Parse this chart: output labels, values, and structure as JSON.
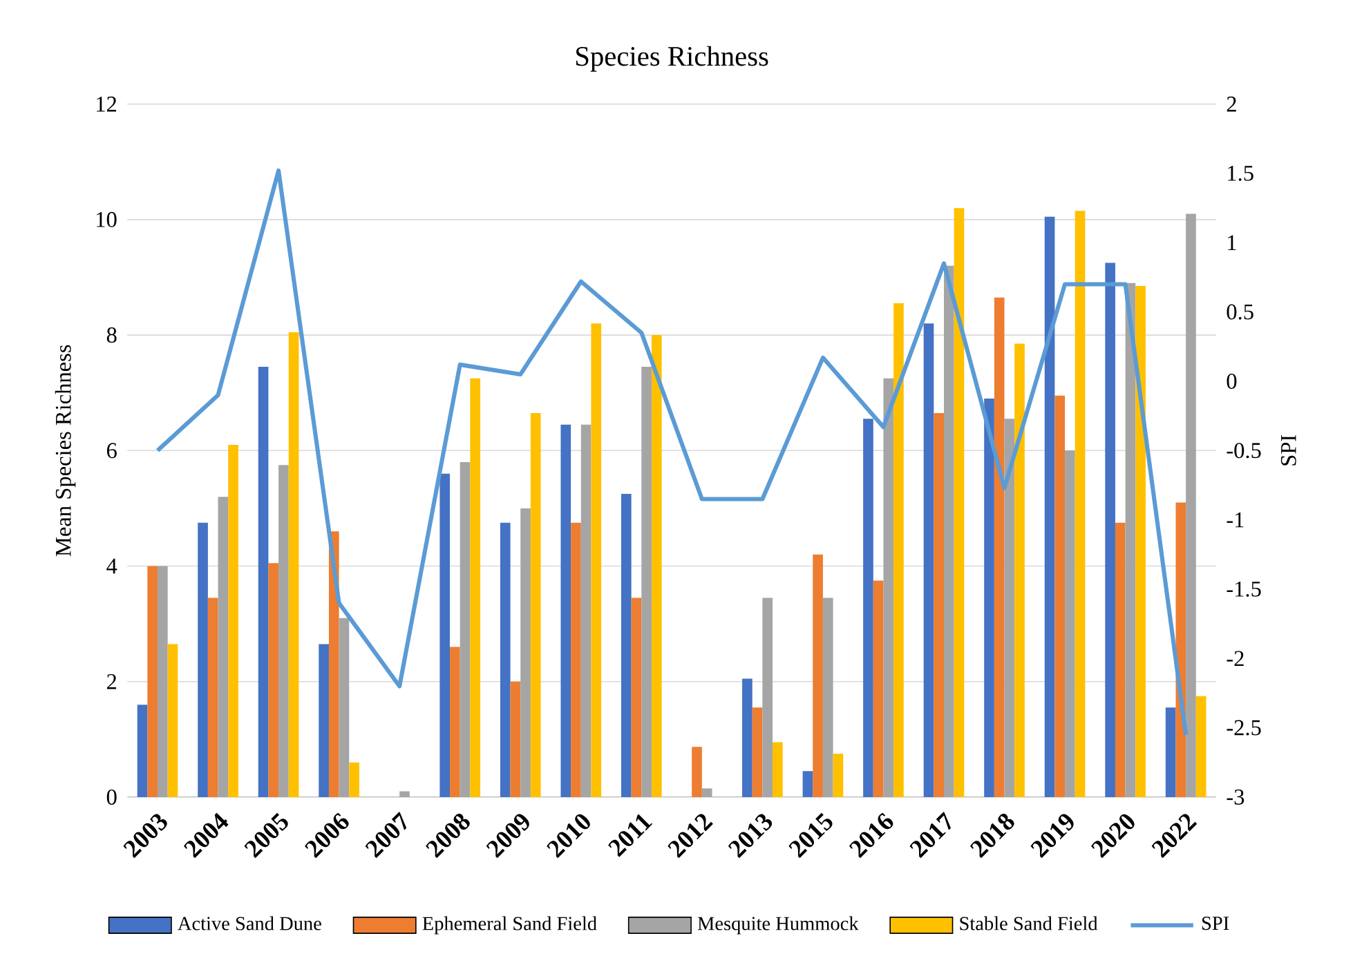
{
  "chart_data": {
    "type": "bar",
    "title": "Species Richness",
    "ylabel": "Mean Species Richness",
    "y2label": "SPI",
    "categories": [
      "2003",
      "2004",
      "2005",
      "2006",
      "2007",
      "2008",
      "2009",
      "2010",
      "2011",
      "2012",
      "2013",
      "2015",
      "2016",
      "2017",
      "2018",
      "2019",
      "2020",
      "2022"
    ],
    "series": [
      {
        "name": "Active Sand Dune",
        "color": "#4472c4",
        "values": [
          1.6,
          4.75,
          7.45,
          2.65,
          null,
          5.6,
          4.75,
          6.45,
          5.25,
          null,
          2.05,
          0.45,
          6.55,
          8.2,
          6.9,
          10.05,
          9.25,
          1.55
        ]
      },
      {
        "name": "Ephemeral Sand Field",
        "color": "#ed7d31",
        "values": [
          4.0,
          3.45,
          4.05,
          4.6,
          null,
          2.6,
          2.0,
          4.75,
          3.45,
          0.87,
          1.55,
          4.2,
          3.75,
          6.65,
          8.65,
          6.95,
          4.75,
          5.1
        ]
      },
      {
        "name": "Mesquite Hummock",
        "color": "#a5a5a5",
        "values": [
          4.0,
          5.2,
          5.75,
          3.1,
          0.1,
          5.8,
          5.0,
          6.45,
          7.45,
          0.15,
          3.45,
          3.45,
          7.25,
          9.2,
          6.55,
          6.0,
          8.9,
          10.1
        ]
      },
      {
        "name": "Stable Sand Field",
        "color": "#ffc000",
        "values": [
          2.65,
          6.1,
          8.05,
          0.6,
          null,
          7.25,
          6.65,
          8.2,
          8.0,
          null,
          0.95,
          0.75,
          8.55,
          10.2,
          7.85,
          10.15,
          8.85,
          1.75
        ]
      },
      {
        "name": "SPI",
        "type": "line",
        "axis": "y2",
        "color": "#5b9bd5",
        "values": [
          -0.5,
          -0.1,
          1.52,
          -1.6,
          -2.2,
          0.12,
          0.05,
          0.72,
          0.35,
          -0.85,
          -0.85,
          0.17,
          -0.33,
          0.85,
          -0.77,
          0.7,
          0.7,
          -2.55
        ]
      }
    ],
    "ylim": [
      0,
      12
    ],
    "yticks": [
      0,
      2,
      4,
      6,
      8,
      10,
      12
    ],
    "y2lim": [
      -3,
      2
    ],
    "y2ticks": [
      -3,
      -2.5,
      -2,
      -1.5,
      -1,
      -0.5,
      0,
      0.5,
      1,
      1.5,
      2
    ],
    "grid": "y",
    "legend": "bottom"
  }
}
